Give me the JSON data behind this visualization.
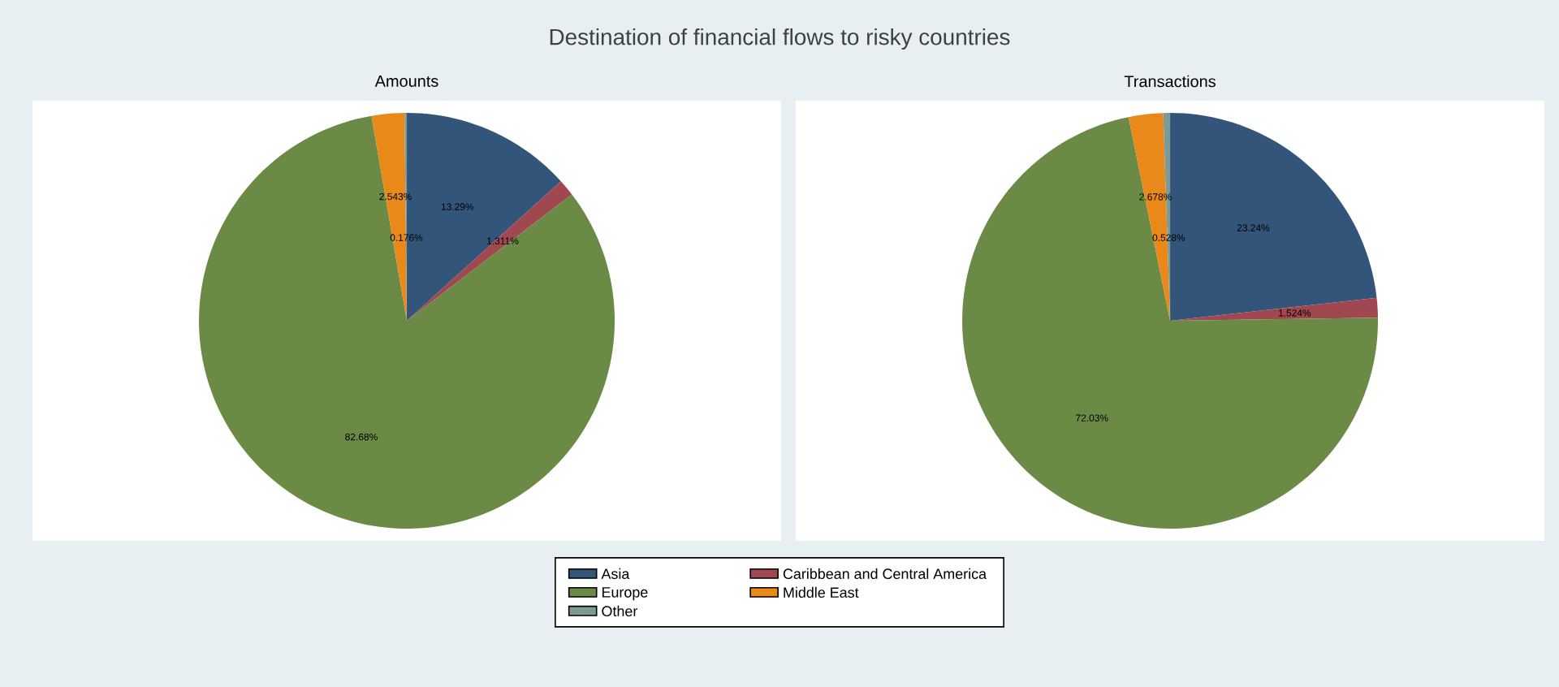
{
  "chart_data": [
    {
      "type": "pie",
      "title": "Destination of financial flows to risky countries",
      "subtitle": "Amounts",
      "legend": "bottom",
      "categories": [
        "Asia",
        "Caribbean and Central America",
        "Europe",
        "Middle East",
        "Other"
      ],
      "values": [
        13.29,
        1.311,
        82.68,
        2.543,
        0.176
      ],
      "value_labels": [
        "13.29%",
        "1.311%",
        "82.68%",
        "2.543%",
        "0.176%"
      ],
      "colors": [
        "#34557a",
        "#a0474f",
        "#6a8a45",
        "#e8891a",
        "#7e9a94"
      ]
    },
    {
      "type": "pie",
      "title": "Transactions",
      "categories": [
        null,
        null,
        null,
        null,
        null
      ],
      "values": [
        23.24,
        1.524,
        72.03,
        2.678,
        0.528
      ],
      "value_labels": [
        "23.24%",
        "1.524%",
        "72.03%",
        "2.678%",
        "0.528%"
      ],
      "colors": [
        "#34557a",
        "#a0474f",
        "#6a8a45",
        "#e8891a",
        "#7e9a94"
      ]
    }
  ]
}
